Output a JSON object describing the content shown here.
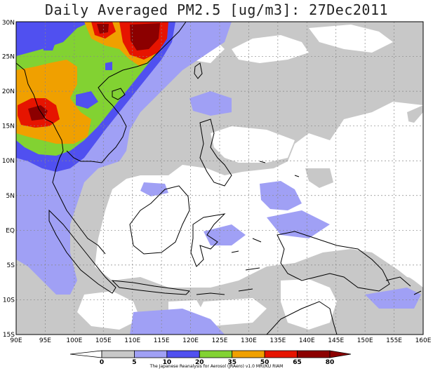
{
  "title": "Daily Averaged PM2.5 [ug/m3]: 27Dec2011",
  "axes": {
    "lon_ticks": [
      "90E",
      "95E",
      "100E",
      "105E",
      "110E",
      "115E",
      "120E",
      "125E",
      "130E",
      "135E",
      "140E",
      "145E",
      "150E",
      "155E",
      "160E"
    ],
    "lat_ticks": [
      "30N",
      "25N",
      "20N",
      "15N",
      "10N",
      "5N",
      "EQ",
      "5S",
      "10S",
      "15S"
    ]
  },
  "colorbar": {
    "levels": [
      "0",
      "5",
      "10",
      "20",
      "35",
      "50",
      "65",
      "80"
    ],
    "colors": [
      "#ffffff",
      "#c8c8c8",
      "#a0a0f5",
      "#5050f0",
      "#82d232",
      "#f0a000",
      "#e61400",
      "#8c0000"
    ]
  },
  "credit": "The Japanese Reanalysis for Aerosol (JRAero) v1.0 MRI/KU RIAM"
}
